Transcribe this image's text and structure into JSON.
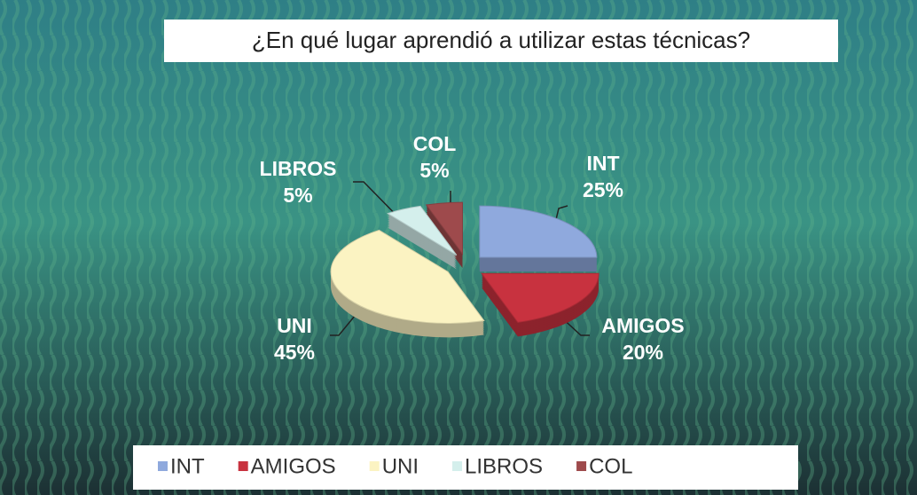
{
  "chart_data": {
    "type": "pie",
    "title": "¿En qué lugar aprendió a utilizar estas técnicas?",
    "categories": [
      "INT",
      "AMIGOS",
      "UNI",
      "LIBROS",
      "COL"
    ],
    "values": [
      25,
      20,
      45,
      5,
      5
    ],
    "value_labels": [
      "25%",
      "20%",
      "45%",
      "5%",
      "5%"
    ],
    "colors": [
      "#8fa9dd",
      "#c8323f",
      "#fbf3c2",
      "#d4efec",
      "#9e4a4c"
    ],
    "legend": "bottom"
  }
}
